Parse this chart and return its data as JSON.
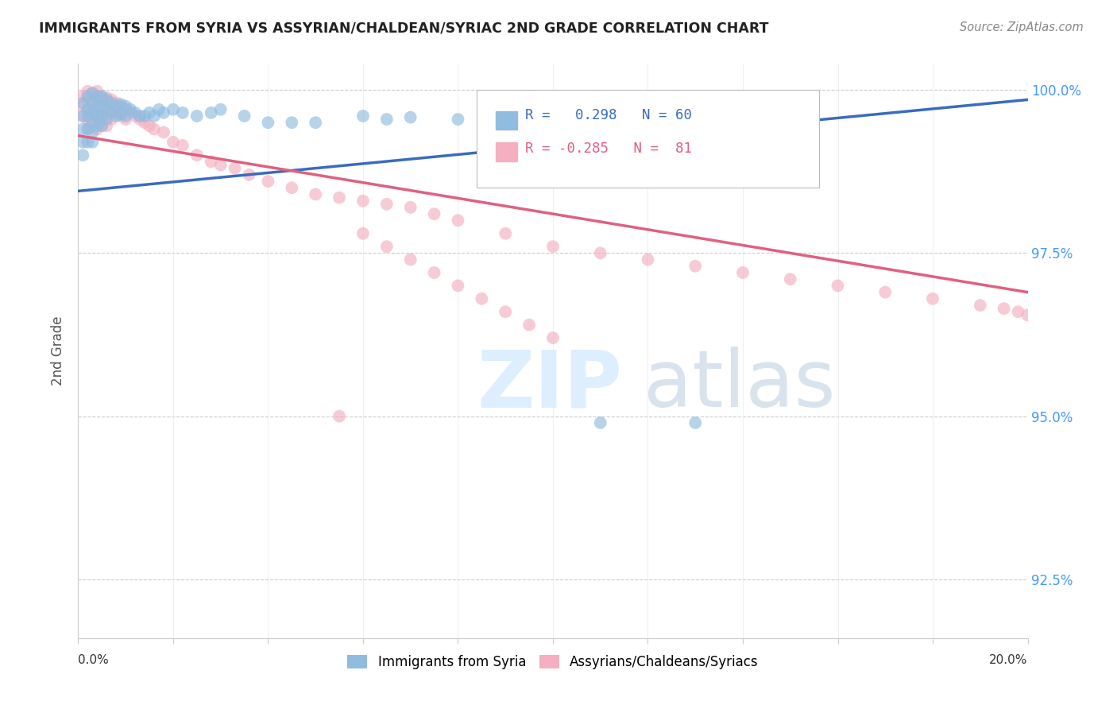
{
  "title": "IMMIGRANTS FROM SYRIA VS ASSYRIAN/CHALDEAN/SYRIAC 2ND GRADE CORRELATION CHART",
  "source": "Source: ZipAtlas.com",
  "ylabel": "2nd Grade",
  "xmin": 0.0,
  "xmax": 0.2,
  "ymin": 0.916,
  "ymax": 1.004,
  "yticks": [
    0.925,
    0.95,
    0.975,
    1.0
  ],
  "ytick_labels": [
    "92.5%",
    "95.0%",
    "97.5%",
    "100.0%"
  ],
  "blue_R": 0.298,
  "blue_N": 60,
  "pink_R": -0.285,
  "pink_N": 81,
  "legend_label_blue": "Immigrants from Syria",
  "legend_label_pink": "Assyrians/Chaldeans/Syriacs",
  "blue_color": "#90bce0",
  "pink_color": "#f4b0c0",
  "blue_line_color": "#3a6bbf",
  "pink_line_color": "#e06080",
  "blue_line_x0": 0.0,
  "blue_line_y0": 0.9845,
  "blue_line_x1": 0.2,
  "blue_line_y1": 0.9985,
  "pink_line_x0": 0.0,
  "pink_line_y0": 0.993,
  "pink_line_x1": 0.2,
  "pink_line_y1": 0.969,
  "blue_dots_x": [
    0.001,
    0.001,
    0.001,
    0.001,
    0.001,
    0.002,
    0.002,
    0.002,
    0.002,
    0.002,
    0.003,
    0.003,
    0.003,
    0.003,
    0.003,
    0.003,
    0.004,
    0.004,
    0.004,
    0.004,
    0.005,
    0.005,
    0.005,
    0.005,
    0.006,
    0.006,
    0.006,
    0.007,
    0.007,
    0.008,
    0.008,
    0.009,
    0.009,
    0.01,
    0.01,
    0.011,
    0.012,
    0.013,
    0.014,
    0.015,
    0.016,
    0.017,
    0.018,
    0.02,
    0.022,
    0.025,
    0.028,
    0.03,
    0.035,
    0.04,
    0.045,
    0.05,
    0.06,
    0.065,
    0.07,
    0.08,
    0.09,
    0.1,
    0.11,
    0.13
  ],
  "blue_dots_y": [
    0.998,
    0.996,
    0.994,
    0.992,
    0.99,
    0.999,
    0.997,
    0.996,
    0.994,
    0.992,
    0.9995,
    0.998,
    0.9965,
    0.995,
    0.9935,
    0.992,
    0.999,
    0.9975,
    0.996,
    0.9945,
    0.999,
    0.9975,
    0.996,
    0.9945,
    0.9985,
    0.997,
    0.9955,
    0.998,
    0.9965,
    0.9975,
    0.996,
    0.9978,
    0.9963,
    0.9975,
    0.996,
    0.997,
    0.9965,
    0.996,
    0.996,
    0.9965,
    0.996,
    0.997,
    0.9965,
    0.997,
    0.9965,
    0.996,
    0.9965,
    0.997,
    0.996,
    0.995,
    0.995,
    0.995,
    0.996,
    0.9955,
    0.9958,
    0.9955,
    0.9955,
    0.9965,
    0.949,
    0.949
  ],
  "pink_dots_x": [
    0.001,
    0.001,
    0.001,
    0.002,
    0.002,
    0.002,
    0.002,
    0.002,
    0.003,
    0.003,
    0.003,
    0.003,
    0.004,
    0.004,
    0.004,
    0.004,
    0.004,
    0.005,
    0.005,
    0.005,
    0.005,
    0.006,
    0.006,
    0.006,
    0.006,
    0.007,
    0.007,
    0.007,
    0.008,
    0.008,
    0.009,
    0.009,
    0.01,
    0.01,
    0.011,
    0.012,
    0.013,
    0.014,
    0.015,
    0.016,
    0.018,
    0.02,
    0.022,
    0.025,
    0.028,
    0.03,
    0.033,
    0.036,
    0.04,
    0.045,
    0.05,
    0.055,
    0.06,
    0.065,
    0.07,
    0.075,
    0.08,
    0.09,
    0.1,
    0.11,
    0.12,
    0.13,
    0.14,
    0.15,
    0.16,
    0.17,
    0.18,
    0.19,
    0.195,
    0.198,
    0.2,
    0.055,
    0.06,
    0.065,
    0.07,
    0.075,
    0.08,
    0.085,
    0.09,
    0.095,
    0.1
  ],
  "pink_dots_y": [
    0.999,
    0.9975,
    0.996,
    0.9998,
    0.9985,
    0.997,
    0.9955,
    0.994,
    0.9995,
    0.998,
    0.9965,
    0.995,
    0.9998,
    0.9985,
    0.997,
    0.9955,
    0.994,
    0.999,
    0.9975,
    0.996,
    0.9945,
    0.9988,
    0.9975,
    0.996,
    0.9945,
    0.9985,
    0.997,
    0.9955,
    0.998,
    0.9965,
    0.9975,
    0.996,
    0.997,
    0.9955,
    0.9965,
    0.996,
    0.9955,
    0.995,
    0.9945,
    0.994,
    0.9935,
    0.992,
    0.9915,
    0.99,
    0.989,
    0.9885,
    0.988,
    0.987,
    0.986,
    0.985,
    0.984,
    0.9835,
    0.983,
    0.9825,
    0.982,
    0.981,
    0.98,
    0.978,
    0.976,
    0.975,
    0.974,
    0.973,
    0.972,
    0.971,
    0.97,
    0.969,
    0.968,
    0.967,
    0.9665,
    0.966,
    0.9655,
    0.95,
    0.978,
    0.976,
    0.974,
    0.972,
    0.97,
    0.968,
    0.966,
    0.964,
    0.962
  ]
}
